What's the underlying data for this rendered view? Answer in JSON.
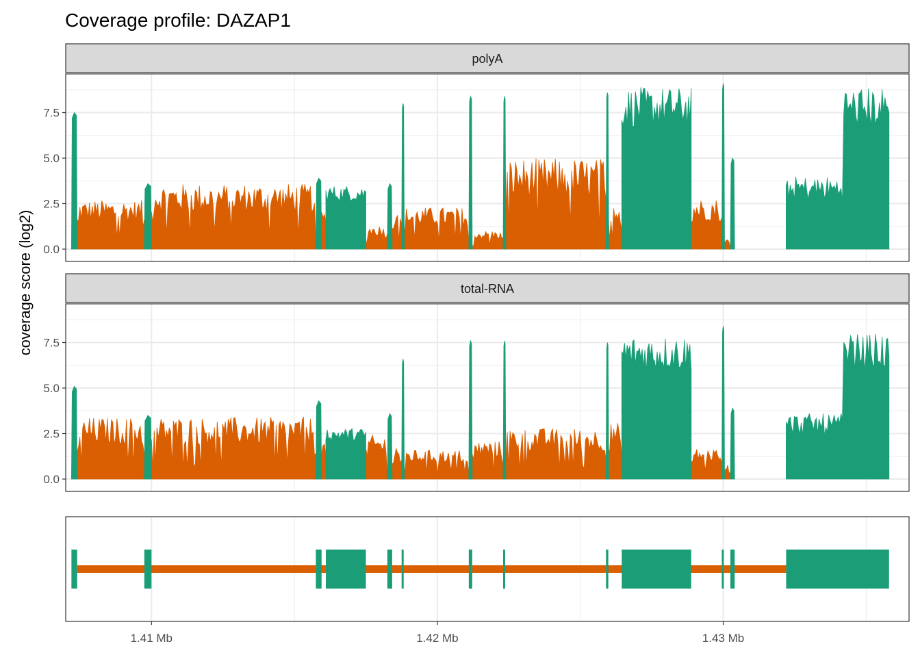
{
  "chart_data": {
    "type": "area",
    "title": "Coverage profile: DAZAP1",
    "ylabel": "coverage score (log2)",
    "xlabel": "",
    "x_unit": "Mb",
    "xlim": [
      1.407,
      1.4365
    ],
    "ylim": [
      0,
      9.4
    ],
    "x_ticks": [
      1.41,
      1.42,
      1.43
    ],
    "x_tick_labels": [
      "1.41 Mb",
      "1.42 Mb",
      "1.43 Mb"
    ],
    "y_ticks": [
      0,
      2.5,
      5,
      7.5
    ],
    "y_tick_labels": [
      "0.0",
      "2.5",
      "5.0",
      "7.5"
    ],
    "grid": true,
    "legend": "none",
    "colors": {
      "exon": "#1b9e77",
      "intron": "#d95f02",
      "strip_bg": "#d9d9d9",
      "grid": "#ebebeb"
    },
    "exons": [
      [
        1.4072,
        1.4074
      ],
      [
        1.40975,
        1.41
      ],
      [
        1.41575,
        1.41595
      ],
      [
        1.4161,
        1.4175
      ],
      [
        1.41825,
        1.41842
      ],
      [
        1.41875,
        1.41882
      ],
      [
        1.4211,
        1.42122
      ],
      [
        1.4223,
        1.42235
      ],
      [
        1.4259,
        1.42598
      ],
      [
        1.42645,
        1.42888
      ],
      [
        1.42995,
        1.43002
      ],
      [
        1.43025,
        1.4304
      ],
      [
        1.4322,
        1.4358
      ]
    ],
    "panels": [
      {
        "name": "polyA",
        "peaks": [
          7.5,
          3.6,
          3.9,
          3.5,
          3.6,
          8.0,
          8.4,
          8.4,
          8.6,
          8.9,
          9.1,
          5.0,
          8.9,
          8.0,
          7.9,
          8.5,
          6.8
        ],
        "intron_levels": [
          2.7,
          3.6,
          3.0,
          1.3,
          2.5,
          2.3,
          1.0,
          5.0,
          2.8,
          2.8,
          0.6
        ]
      },
      {
        "name": "total-RNA",
        "peaks": [
          5.1,
          3.5,
          4.3,
          2.8,
          3.6,
          6.6,
          7.6,
          7.6,
          7.5,
          7.9,
          8.4,
          3.9,
          8.0,
          6.3,
          5.6,
          7.6,
          7.8
        ],
        "intron_levels": [
          3.4,
          3.4,
          3.0,
          2.4,
          1.9,
          1.6,
          2.1,
          2.8,
          3.1,
          1.7,
          0.8
        ]
      }
    ]
  }
}
